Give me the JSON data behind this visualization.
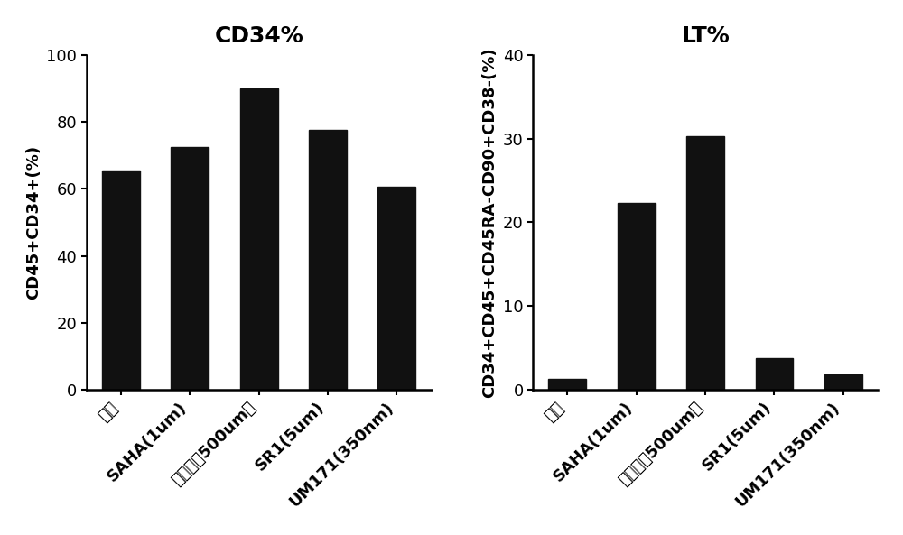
{
  "left_title": "CD34%",
  "right_title": "LT%",
  "categories": [
    "模拟",
    "SAHA(1um)",
    "丙戊酸（500um）",
    "SR1(5um)",
    "UM171(350nm)"
  ],
  "left_values": [
    65.5,
    72.5,
    90.0,
    77.5,
    60.5
  ],
  "right_values": [
    1.3,
    22.3,
    30.3,
    3.8,
    1.8
  ],
  "left_ylabel": "CD45+CD34+(%)",
  "right_ylabel": "CD34+CD45+CD45RA-CD90+CD38-(%)",
  "left_ylim": [
    0,
    100
  ],
  "right_ylim": [
    0,
    40
  ],
  "left_yticks": [
    0,
    20,
    40,
    60,
    80,
    100
  ],
  "right_yticks": [
    0,
    10,
    20,
    30,
    40
  ],
  "bar_color": "#111111",
  "background_color": "#ffffff",
  "title_fontsize": 18,
  "ylabel_fontsize": 13,
  "tick_fontsize": 13,
  "bar_width": 0.55
}
